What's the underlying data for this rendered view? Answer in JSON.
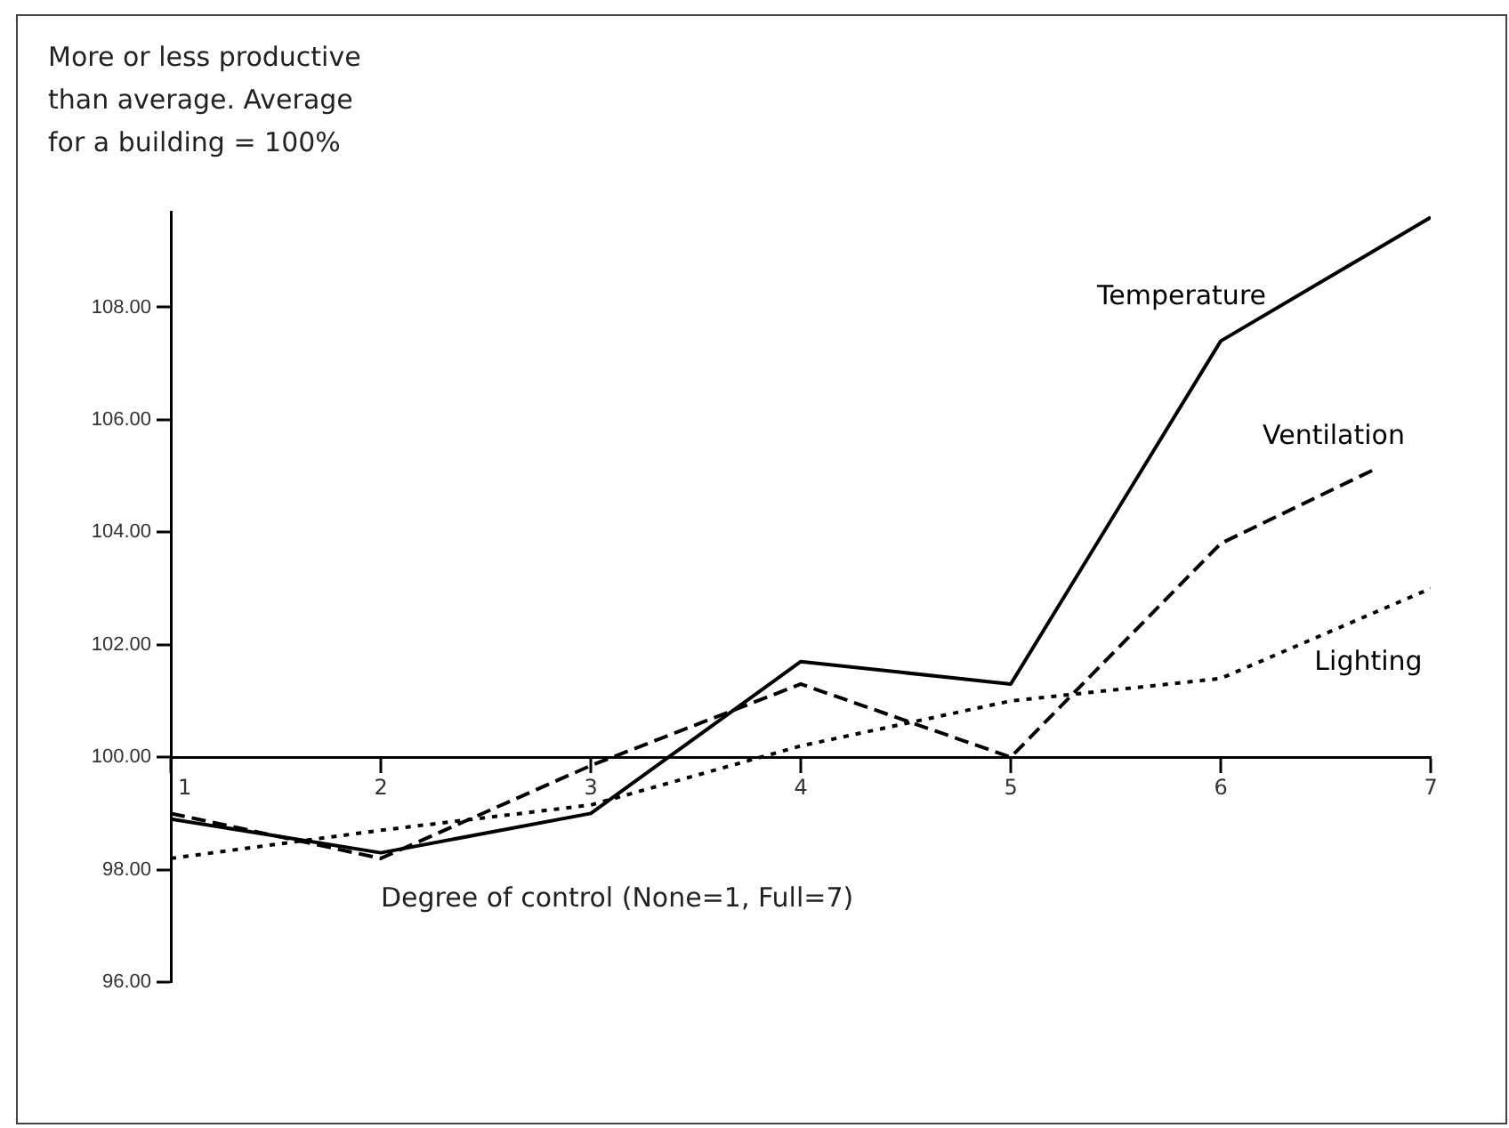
{
  "chart_data": {
    "type": "line",
    "ylabel": "More or less productive\nthan average.  Average\nfor a building = 100%",
    "xlabel": "Degree of control (None=1, Full=7)",
    "xlim": [
      1,
      7
    ],
    "xticks": [
      {
        "value": 1,
        "label": "1"
      },
      2,
      3,
      4,
      5,
      6,
      7
    ],
    "ylim": [
      96,
      109.7
    ],
    "yticks": [
      {
        "value": 96,
        "label": "96.00"
      },
      {
        "value": 98,
        "label": "98.00"
      },
      {
        "value": 100,
        "label": "100.00"
      },
      {
        "value": 102,
        "label": "102.00"
      },
      {
        "value": 104,
        "label": "104.00"
      },
      {
        "value": 106,
        "label": "106.00"
      },
      {
        "value": 108,
        "label": "108.00"
      }
    ],
    "grid": false,
    "legend": false,
    "marker": "none",
    "series": [
      {
        "name": "Temperature",
        "color": "#000000",
        "line_style": "solid",
        "x": [
          1,
          2,
          3,
          4,
          5,
          6,
          7
        ],
        "values": [
          98.9,
          98.3,
          99.0,
          101.7,
          101.3,
          107.4,
          109.6
        ]
      },
      {
        "name": "Ventilation",
        "color": "#000000",
        "line_style": "dashed",
        "x": [
          1,
          2,
          3,
          4,
          5,
          6,
          6.75
        ],
        "values": [
          99.0,
          98.2,
          99.85,
          101.3,
          100.0,
          103.8,
          105.15
        ]
      },
      {
        "name": "Lighting",
        "color": "#000000",
        "line_style": "dotted",
        "x": [
          1,
          2,
          3,
          4,
          5,
          6,
          7
        ],
        "values": [
          98.2,
          98.7,
          99.15,
          100.2,
          101.0,
          101.4,
          103.0
        ]
      }
    ]
  }
}
